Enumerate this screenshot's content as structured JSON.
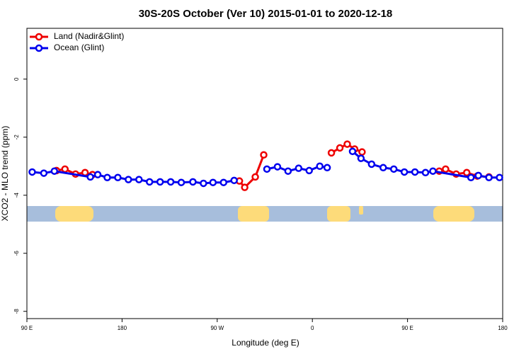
{
  "chart_data": {
    "type": "line",
    "title": "30S-20S October (Ver 10)   2015-01-01 to 2020-12-18",
    "x_label": "Longitude (deg E)",
    "y_label": "XCO2 - MLO trend (ppm)",
    "xlim": [
      90,
      540
    ],
    "ylim": [
      -8.25,
      1.75
    ],
    "xticks": [
      {
        "value": 90,
        "label": "90 E"
      },
      {
        "value": 180,
        "label": "180"
      },
      {
        "value": 270,
        "label": "90 W"
      },
      {
        "value": 360,
        "label": "0"
      },
      {
        "value": 450,
        "label": "90 E"
      },
      {
        "value": 540,
        "label": "180"
      }
    ],
    "yticks": [
      0,
      -2,
      -4,
      -6,
      -8
    ],
    "legend": "top-left",
    "series": [
      {
        "name": "Land (Nadir&Glint)",
        "color": "#ee0000",
        "x": [
          118,
          126,
          136,
          145,
          152,
          null,
          291,
          296,
          306,
          314,
          null,
          378,
          386,
          393,
          400,
          407,
          null,
          480,
          486,
          496,
          506,
          516,
          527
        ],
        "values": [
          -3.15,
          -3.1,
          -3.27,
          -3.22,
          -3.29,
          null,
          -3.51,
          -3.73,
          -3.37,
          -2.61,
          null,
          -2.54,
          -2.37,
          -2.24,
          -2.41,
          -2.51,
          null,
          -3.17,
          -3.1,
          -3.27,
          -3.22,
          -3.34,
          -3.37
        ]
      },
      {
        "name": "Ocean (Glint)",
        "color": "#0000ee",
        "x": [
          95,
          106,
          116,
          150,
          157,
          166,
          176,
          186,
          196,
          206,
          216,
          226,
          236,
          247,
          257,
          266,
          276,
          286,
          null,
          317,
          327,
          337,
          347,
          357,
          367,
          374,
          null,
          398,
          406,
          416,
          427,
          437,
          447,
          457,
          467,
          474,
          510,
          517,
          527,
          537
        ],
        "values": [
          -3.2,
          -3.24,
          -3.17,
          -3.37,
          -3.29,
          -3.39,
          -3.39,
          -3.46,
          -3.46,
          -3.54,
          -3.54,
          -3.54,
          -3.56,
          -3.54,
          -3.59,
          -3.56,
          -3.56,
          -3.49,
          null,
          -3.1,
          -3.02,
          -3.17,
          -3.07,
          -3.15,
          -3.0,
          -3.05,
          null,
          -2.49,
          -2.73,
          -2.93,
          -3.05,
          -3.1,
          -3.2,
          -3.2,
          -3.22,
          -3.17,
          -3.39,
          -3.32,
          -3.39,
          -3.39
        ]
      }
    ]
  }
}
